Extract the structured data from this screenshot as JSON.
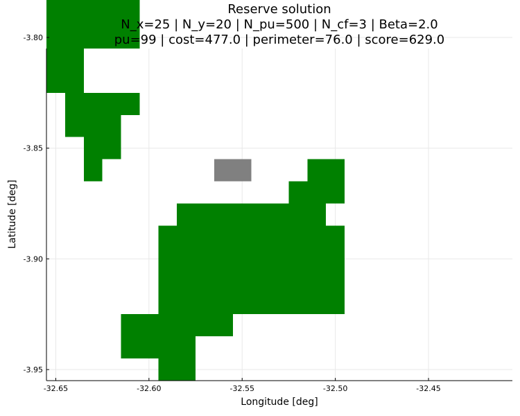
{
  "chart_data": {
    "type": "heatmap",
    "title": "Reserve solution",
    "subtitle_lines": [
      "N_x=25 | N_y=20 | N_pu=500 | N_cf=3 | Beta=2.0",
      "pu=99 | cost=477.0 | perimeter=76.0 | score=629.0"
    ],
    "xlabel": "Longitude [deg]",
    "ylabel": "Latitude [deg]",
    "xlim": [
      -32.655,
      -32.405
    ],
    "ylim": [
      -3.955,
      -3.805
    ],
    "xticks": [
      -32.65,
      -32.6,
      -32.55,
      -32.5,
      -32.45
    ],
    "xtick_labels": [
      "-32.65",
      "-32.60",
      "-32.55",
      "-32.50",
      "-32.45"
    ],
    "yticks": [
      -3.8,
      -3.85,
      -3.9,
      -3.95
    ],
    "ytick_labels": [
      "-3.80",
      "-3.85",
      "-3.90",
      "-3.95"
    ],
    "grid": true,
    "cell_size": 0.01,
    "colors": {
      "selected": "#008000",
      "locked": "#808080"
    },
    "selected_rows": [
      {
        "lat": -3.82,
        "lon": [
          -32.65,
          -32.64
        ]
      },
      {
        "lat": -3.81,
        "lon": [
          -32.65,
          -32.64
        ]
      },
      {
        "lat": -3.8,
        "lon": [
          -32.65,
          -32.61
        ]
      },
      {
        "lat": -3.79,
        "lon": [
          -32.65,
          -32.61
        ]
      },
      {
        "lat": -3.78,
        "lon": [
          -32.65,
          -32.61
        ]
      },
      {
        "lat": -3.83,
        "lon": [
          -32.64,
          -32.61
        ]
      },
      {
        "lat": -3.84,
        "lon": [
          -32.64,
          -32.62
        ]
      },
      {
        "lat": -3.85,
        "lon": [
          -32.63,
          -32.62
        ]
      },
      {
        "lat": -3.86,
        "lon": [
          -32.63,
          -32.63
        ]
      },
      {
        "lat": -3.86,
        "lon": [
          -32.51,
          -32.5
        ]
      },
      {
        "lat": -3.87,
        "lon": [
          -32.52,
          -32.5
        ]
      },
      {
        "lat": -3.88,
        "lon": [
          -32.58,
          -32.51
        ]
      },
      {
        "lat": -3.89,
        "lon": [
          -32.59,
          -32.5
        ]
      },
      {
        "lat": -3.9,
        "lon": [
          -32.59,
          -32.5
        ]
      },
      {
        "lat": -3.91,
        "lon": [
          -32.59,
          -32.5
        ]
      },
      {
        "lat": -3.92,
        "lon": [
          -32.59,
          -32.5
        ]
      },
      {
        "lat": -3.93,
        "lon": [
          -32.61,
          -32.56
        ]
      },
      {
        "lat": -3.94,
        "lon": [
          -32.61,
          -32.58
        ]
      },
      {
        "lat": -3.95,
        "lon": [
          -32.59,
          -32.58
        ]
      }
    ],
    "locked_rows": [
      {
        "lat": -3.86,
        "lon": [
          -32.56,
          -32.55
        ]
      }
    ]
  }
}
